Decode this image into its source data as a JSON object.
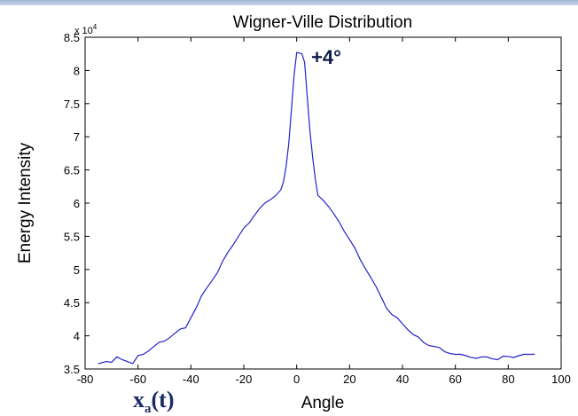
{
  "chart_data": {
    "type": "line",
    "title": "Wigner-Ville Distribution",
    "xlabel": "Angle",
    "ylabel": "Energy Intensity",
    "y_exponent_label": "x 10",
    "y_exponent_power": "4",
    "xlim": [
      -80,
      100
    ],
    "ylim": [
      3.5,
      8.5
    ],
    "x_ticks": [
      -80,
      -60,
      -40,
      -20,
      0,
      20,
      40,
      60,
      80,
      100
    ],
    "y_ticks": [
      3.5,
      4,
      4.5,
      5,
      5.5,
      6,
      6.5,
      7,
      7.5,
      8,
      8.5
    ],
    "x_tick_labels": [
      "-80",
      "-60",
      "-40",
      "-20",
      "0",
      "20",
      "40",
      "60",
      "80",
      "100"
    ],
    "y_tick_labels": [
      "3.5",
      "4",
      "4.5",
      "5",
      "5.5",
      "6",
      "6.5",
      "7",
      "7.5",
      "8",
      "8.5"
    ],
    "grid": false,
    "line_color": "#2222cc",
    "series": [
      {
        "x": [
          -75,
          -72,
          -70,
          -68,
          -66,
          -64,
          -62,
          -60,
          -58,
          -56,
          -54,
          -52,
          -50,
          -48,
          -46,
          -44,
          -42,
          -40,
          -38,
          -36,
          -34,
          -32,
          -30,
          -28,
          -26,
          -24,
          -22,
          -20,
          -18,
          -16,
          -14,
          -12,
          -10,
          -8,
          -6,
          -5,
          -4,
          -3,
          -2,
          -1,
          0,
          1,
          2,
          3,
          4,
          5,
          6,
          7,
          8,
          10,
          12,
          14,
          16,
          18,
          20,
          22,
          24,
          26,
          28,
          30,
          32,
          34,
          36,
          38,
          40,
          42,
          44,
          46,
          48,
          50,
          52,
          54,
          56,
          58,
          60,
          62,
          64,
          66,
          68,
          70,
          72,
          74,
          76,
          78,
          80,
          82,
          84,
          86,
          88,
          90
        ],
        "values": [
          3.58,
          3.62,
          3.6,
          3.66,
          3.64,
          3.62,
          3.58,
          3.68,
          3.72,
          3.78,
          3.84,
          3.88,
          3.92,
          3.98,
          4.04,
          4.08,
          4.12,
          4.28,
          4.42,
          4.58,
          4.72,
          4.84,
          4.95,
          5.1,
          5.26,
          5.38,
          5.5,
          5.6,
          5.7,
          5.82,
          5.92,
          5.98,
          6.05,
          6.12,
          6.2,
          6.3,
          6.55,
          6.9,
          7.4,
          7.9,
          8.27,
          8.27,
          8.25,
          8.1,
          7.6,
          7.1,
          6.7,
          6.35,
          6.12,
          6.05,
          5.95,
          5.82,
          5.72,
          5.58,
          5.45,
          5.3,
          5.15,
          5.02,
          4.88,
          4.72,
          4.58,
          4.42,
          4.32,
          4.25,
          4.18,
          4.1,
          4.02,
          3.96,
          3.9,
          3.86,
          3.84,
          3.8,
          3.76,
          3.74,
          3.72,
          3.7,
          3.7,
          3.68,
          3.66,
          3.66,
          3.68,
          3.66,
          3.64,
          3.67,
          3.69,
          3.68,
          3.7,
          3.7,
          3.72,
          3.73
        ]
      }
    ],
    "annotations": [
      {
        "text": "+4°",
        "x": 5.5,
        "y": 8.1
      }
    ]
  },
  "signal_label": {
    "base": "x",
    "sub": "a",
    "suffix": "(t)"
  }
}
